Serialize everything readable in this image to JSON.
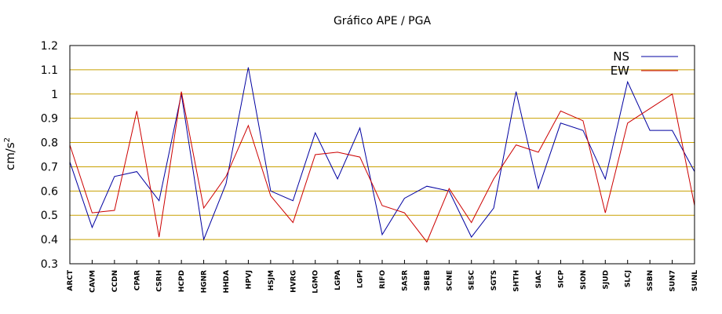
{
  "chart_data": {
    "type": "line",
    "title": "Gráfico  APE / PGA",
    "xlabel": "",
    "ylabel": "cm/s",
    "ylabel_superscript": "2",
    "ylim": [
      0.3,
      1.2
    ],
    "yticks": [
      "0.3",
      "0.4",
      "0.5",
      "0.6",
      "0.7",
      "0.8",
      "0.9",
      "1",
      "1.1",
      "1.2"
    ],
    "grid": "horizontal",
    "legend_position": "top-right",
    "categories": [
      "ARCT",
      "CAVM",
      "CCDN",
      "CPAR",
      "CSRH",
      "HCPD",
      "HGNR",
      "HHDA",
      "HPVJ",
      "HSJM",
      "HVRG",
      "LGMO",
      "LGPA",
      "LGPI",
      "RIFO",
      "SASR",
      "SBEB",
      "SCNE",
      "SESC",
      "SGTS",
      "SHTH",
      "SIAC",
      "SICP",
      "SION",
      "SJUD",
      "SLCJ",
      "SSBN",
      "SUN7",
      "SUNL"
    ],
    "series": [
      {
        "name": "NS",
        "color": "#0000a0",
        "values": [
          0.72,
          0.45,
          0.66,
          0.68,
          0.56,
          1.0,
          0.4,
          0.63,
          1.11,
          0.6,
          0.56,
          0.84,
          0.65,
          0.86,
          0.42,
          0.57,
          0.62,
          0.6,
          0.41,
          0.53,
          1.01,
          0.61,
          0.88,
          0.85,
          0.65,
          1.05,
          0.85,
          0.85,
          0.68
        ]
      },
      {
        "name": "EW",
        "color": "#cc0000",
        "values": [
          0.79,
          0.51,
          0.52,
          0.93,
          0.41,
          1.01,
          0.53,
          0.66,
          0.87,
          0.58,
          0.47,
          0.75,
          0.76,
          0.74,
          0.54,
          0.51,
          0.39,
          0.61,
          0.47,
          0.65,
          0.79,
          0.76,
          0.93,
          0.89,
          0.51,
          0.88,
          0.94,
          1.0,
          0.54
        ]
      }
    ],
    "colors": {
      "grid": "#c8a000",
      "axis": "#000000"
    }
  }
}
